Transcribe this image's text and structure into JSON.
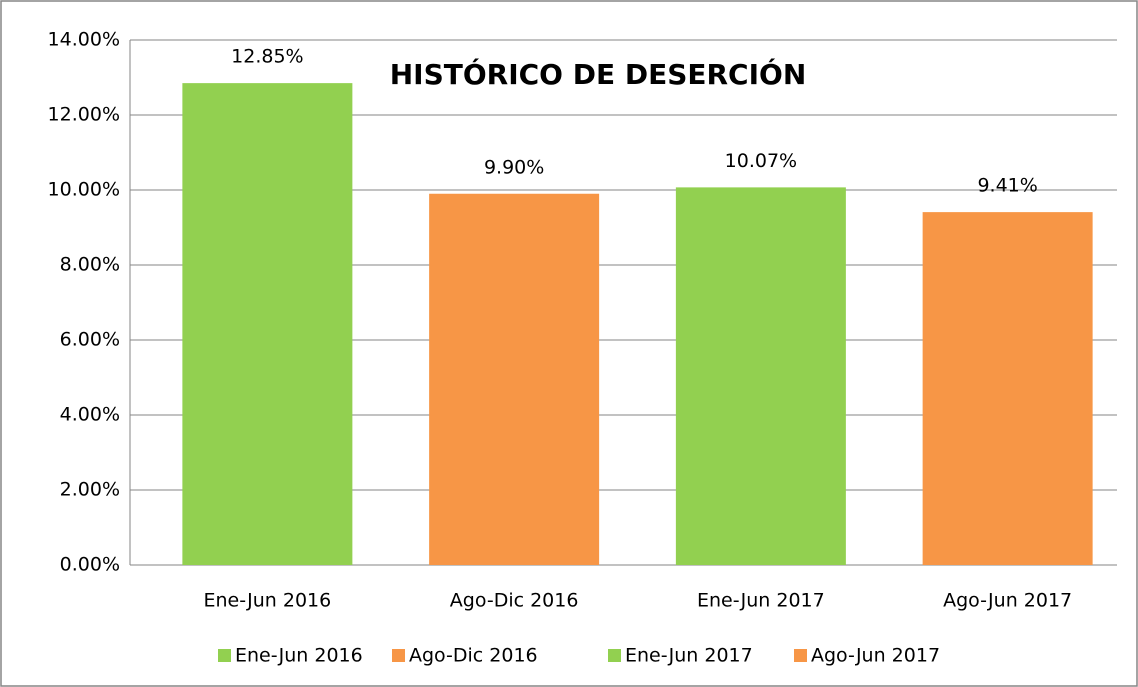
{
  "chart_data": {
    "type": "bar",
    "title": "HISTÓRICO DE DESERCIÓN",
    "categories": [
      "Ene-Jun 2016",
      "Ago-Dic 2016",
      "Ene-Jun 2017",
      "Ago-Jun 2017"
    ],
    "values": [
      12.85,
      9.9,
      10.07,
      9.41
    ],
    "value_labels": [
      "12.85%",
      "9.90%",
      "10.07%",
      "9.41%"
    ],
    "colors": [
      "#92d050",
      "#f79646",
      "#92d050",
      "#f79646"
    ],
    "ylim": [
      0,
      14
    ],
    "yticks": [
      {
        "value": 0,
        "label": "0.00%"
      },
      {
        "value": 2,
        "label": "2.00%"
      },
      {
        "value": 4,
        "label": "4.00%"
      },
      {
        "value": 6,
        "label": "6.00%"
      },
      {
        "value": 8,
        "label": "8.00%"
      },
      {
        "value": 10,
        "label": "10.00%"
      },
      {
        "value": 12,
        "label": "12.00%"
      },
      {
        "value": 14,
        "label": "14.00%"
      }
    ],
    "grid": true,
    "legend": "bottom"
  }
}
